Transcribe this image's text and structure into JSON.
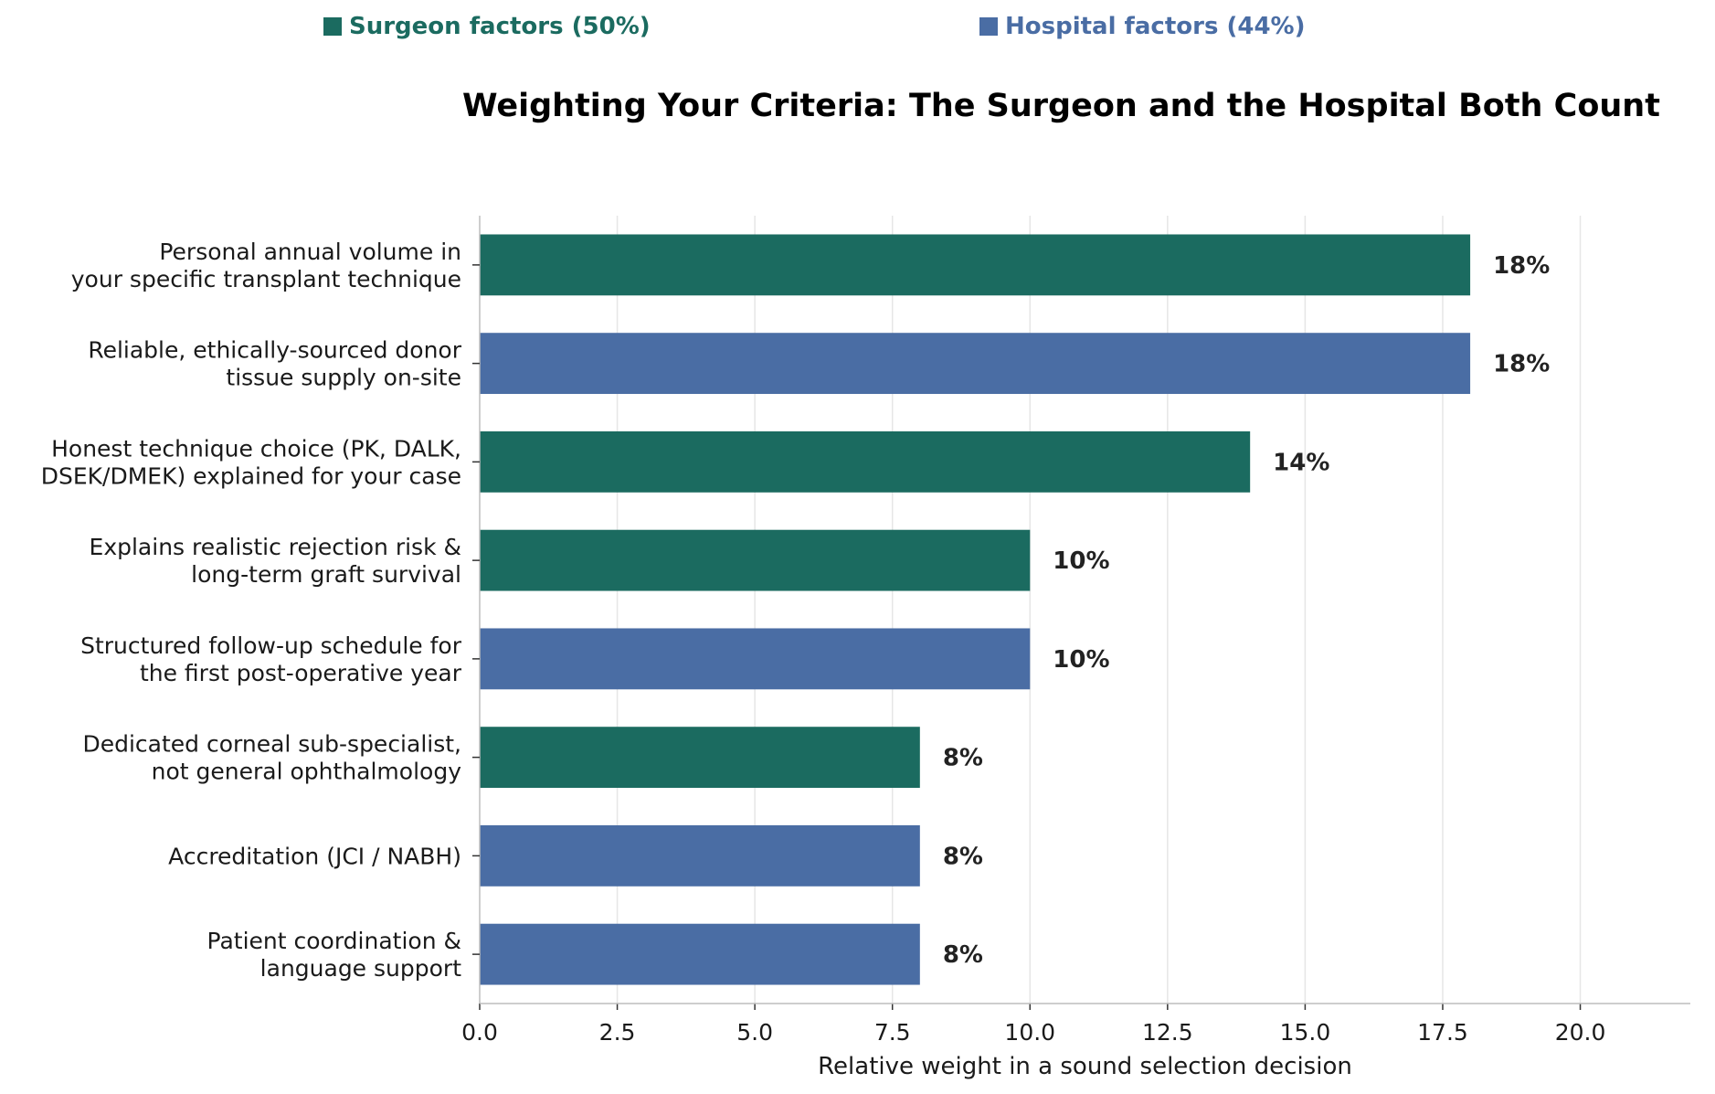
{
  "colors": {
    "surgeon": "#1b6b60",
    "hospital": "#4a6da4"
  },
  "legend": {
    "surgeon_label": "Surgeon factors (50%)",
    "hospital_label": "Hospital factors (44%)"
  },
  "chart_data": {
    "type": "bar",
    "orientation": "horizontal",
    "title": "Weighting Your Criteria: The Surgeon and the Hospital Both Count",
    "xlabel": "Relative weight in a sound selection decision",
    "ylabel": "",
    "xlim": [
      0,
      22
    ],
    "xticks": [
      "0.0",
      "2.5",
      "5.0",
      "7.5",
      "10.0",
      "12.5",
      "15.0",
      "17.5",
      "20.0"
    ],
    "grid": "vertical",
    "legend_position": "top",
    "categories": [
      [
        "Personal annual volume in",
        "your specific transplant technique"
      ],
      [
        "Reliable, ethically-sourced donor",
        "tissue supply on-site"
      ],
      [
        "Honest technique choice (PK, DALK,",
        "DSEK/DMEK) explained for your case"
      ],
      [
        "Explains realistic rejection risk &",
        "long-term graft survival"
      ],
      [
        "Structured follow-up schedule for",
        "the first post-operative year"
      ],
      [
        "Dedicated corneal sub-specialist,",
        "not general ophthalmology"
      ],
      [
        "Accreditation (JCI / NABH)"
      ],
      [
        "Patient coordination &",
        "language support"
      ]
    ],
    "values": [
      18,
      18,
      14,
      10,
      10,
      8,
      8,
      8
    ],
    "groups": [
      "surgeon",
      "hospital",
      "surgeon",
      "surgeon",
      "hospital",
      "surgeon",
      "hospital",
      "hospital"
    ],
    "data_labels": [
      "18%",
      "18%",
      "14%",
      "10%",
      "10%",
      "8%",
      "8%",
      "8%"
    ]
  }
}
